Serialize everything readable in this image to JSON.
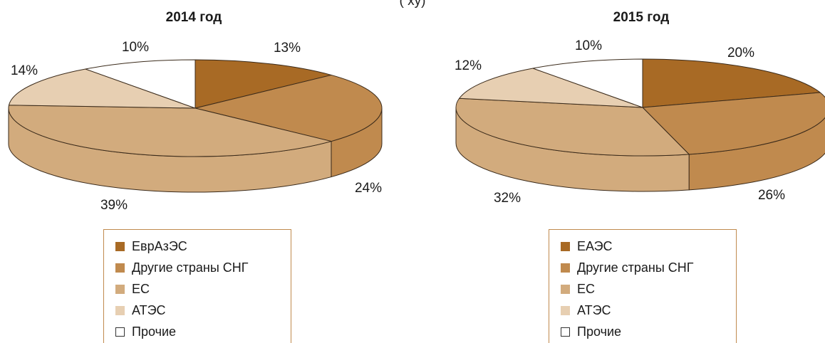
{
  "header_cut_text": "(          ху)",
  "chart_data": [
    {
      "type": "pie",
      "title": "2014 год",
      "slices": [
        {
          "label": "ЕврАзЭС",
          "value": 13,
          "value_label": "13%",
          "color": "#a86a25"
        },
        {
          "label": "Другие страны СНГ",
          "value": 24,
          "value_label": "24%",
          "color": "#c08a4e"
        },
        {
          "label": "ЕС",
          "value": 39,
          "value_label": "39%",
          "color": "#d2ab7d"
        },
        {
          "label": "АТЭС",
          "value": 14,
          "value_label": "14%",
          "color": "#e7cfb2"
        },
        {
          "label": "Прочие",
          "value": 10,
          "value_label": "10%",
          "color": "#ffffff"
        }
      ],
      "legend_placement": "bottom"
    },
    {
      "type": "pie",
      "title": "2015 год",
      "slices": [
        {
          "label": "ЕАЭС",
          "value": 20,
          "value_label": "20%",
          "color": "#a86a25"
        },
        {
          "label": "Другие страны СНГ",
          "value": 26,
          "value_label": "26%",
          "color": "#c08a4e"
        },
        {
          "label": "ЕС",
          "value": 32,
          "value_label": "32%",
          "color": "#d2ab7d"
        },
        {
          "label": "АТЭС",
          "value": 12,
          "value_label": "12%",
          "color": "#e7cfb2"
        },
        {
          "label": "Прочие",
          "value": 10,
          "value_label": "10%",
          "color": "#ffffff"
        }
      ],
      "legend_placement": "bottom"
    }
  ]
}
